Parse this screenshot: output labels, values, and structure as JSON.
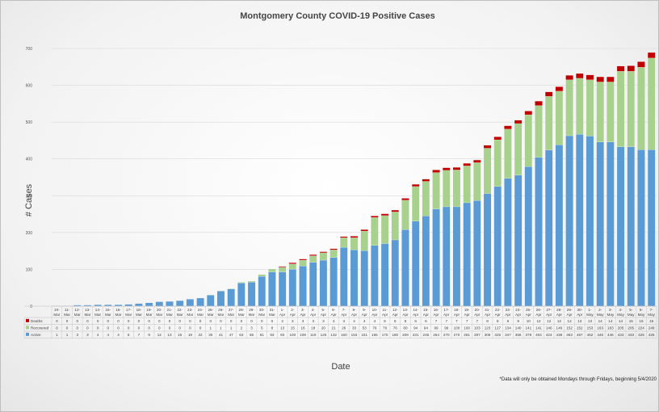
{
  "chart_data": {
    "type": "bar",
    "stacked": true,
    "title": "Montgomery County COVID-19 Positive Cases",
    "xlabel": "Date",
    "ylabel": "# Cases",
    "ylim": [
      0,
      700
    ],
    "yticks": [
      0,
      100,
      200,
      300,
      400,
      500,
      600,
      700
    ],
    "grid": true,
    "legend_placement": "bottom-left data table",
    "note": "*Data will only be obtained Mondays through Fridays, beginning 5/4/2020",
    "categories": [
      "10-Mar",
      "11-Mar",
      "12-Mar",
      "13-Mar",
      "14-Mar",
      "15-Mar",
      "16-Mar",
      "17-Mar",
      "18-Mar",
      "19-Mar",
      "20-Mar",
      "21-Mar",
      "22-Mar",
      "23-Mar",
      "24-Mar",
      "25-Mar",
      "26-Mar",
      "27-Mar",
      "28-Mar",
      "29-Mar",
      "30-Mar",
      "31-Mar",
      "1-Apr",
      "2-Apr",
      "3-Apr",
      "4-Apr",
      "5-Apr",
      "6-Apr",
      "7-Apr",
      "8-Apr",
      "9-Apr",
      "10-Apr",
      "11-Apr",
      "12-Apr",
      "13-Apr",
      "14-Apr",
      "15-Apr",
      "16-Apr",
      "17-Apr",
      "18-Apr",
      "19-Apr",
      "20-Apr",
      "21-Apr",
      "22-Apr",
      "23-Apr",
      "24-Apr",
      "25-Apr",
      "26-Apr",
      "27-Apr",
      "28-Apr",
      "29-Apr",
      "30-Apr",
      "1-May",
      "2-May",
      "3-May",
      "4-May",
      "5-May",
      "6-May",
      "7-May"
    ],
    "series": [
      {
        "name": "Deaths",
        "color": "#c00000",
        "values": [
          0,
          0,
          0,
          0,
          0,
          0,
          0,
          0,
          0,
          0,
          0,
          0,
          0,
          0,
          0,
          0,
          0,
          0,
          0,
          0,
          0,
          0,
          2,
          3,
          3,
          3,
          3,
          3,
          3,
          4,
          4,
          4,
          5,
          5,
          5,
          6,
          6,
          7,
          7,
          7,
          7,
          7,
          8,
          8,
          9,
          9,
          10,
          12,
          12,
          12,
          12,
          13,
          13,
          14,
          14,
          14,
          15,
          15,
          15
        ]
      },
      {
        "name": "Recovered",
        "color": "#a9d18e",
        "values": [
          0,
          0,
          0,
          0,
          0,
          0,
          0,
          0,
          0,
          0,
          0,
          0,
          0,
          0,
          0,
          1,
          1,
          1,
          2,
          3,
          5,
          8,
          13,
          15,
          16,
          18,
          20,
          21,
          26,
          33,
          53,
          76,
          76,
          76,
          80,
          94,
          94,
          99,
          99,
          100,
          100,
          103,
          123,
          127,
          134,
          140,
          141,
          141,
          146,
          146,
          152,
          152,
          153,
          163,
          163,
          205,
          205,
          224,
          249
        ]
      },
      {
        "name": "Active",
        "color": "#5b9bd5",
        "values": [
          1,
          1,
          3,
          3,
          4,
          4,
          4,
          5,
          7,
          9,
          12,
          13,
          15,
          19,
          22,
          30,
          41,
          47,
          63,
          65,
          81,
          93,
          93,
          100,
          109,
          119,
          125,
          132,
          160,
          153,
          151,
          165,
          170,
          180,
          208,
          231,
          245,
          264,
          270,
          270,
          281,
          287,
          306,
          325,
          347,
          356,
          379,
          404,
          424,
          438,
          463,
          467,
          462,
          446,
          446,
          433,
          433,
          425,
          425
        ]
      }
    ]
  }
}
